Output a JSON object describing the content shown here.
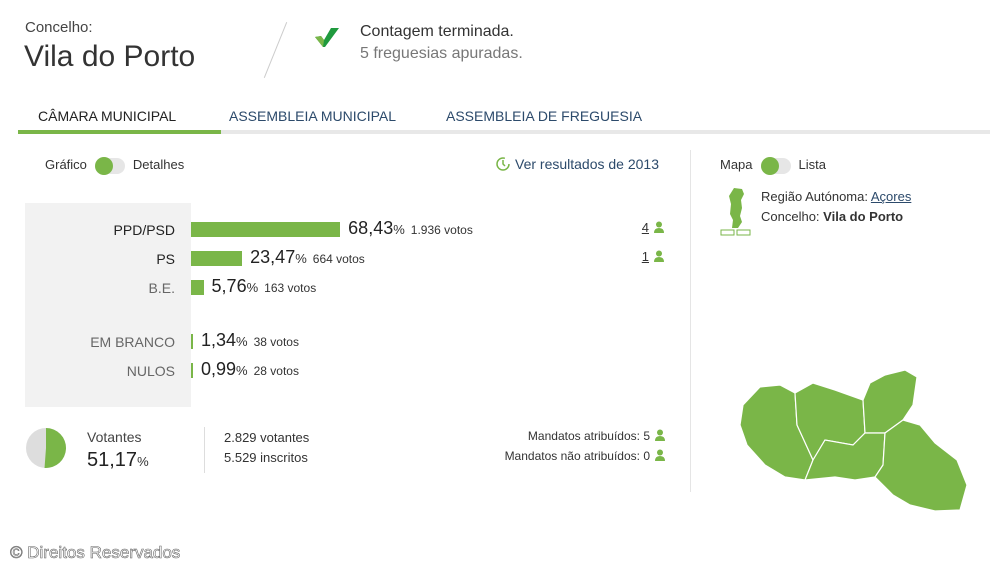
{
  "header": {
    "concelho_label": "Concelho:",
    "concelho_name": "Vila do Porto",
    "status": "Contagem terminada.",
    "freguesias": "5 freguesias apuradas."
  },
  "tabs": [
    {
      "label": "CÂMARA MUNICIPAL",
      "active": true
    },
    {
      "label": "ASSEMBLEIA MUNICIPAL"
    },
    {
      "label": "ASSEMBLEIA DE FREGUESIA"
    }
  ],
  "view_toggle": {
    "left": "Gráfico",
    "right": "Detalhes"
  },
  "history_link": "Ver resultados de 2013",
  "results": [
    {
      "party": "PPD/PSD",
      "percent": 68.43,
      "percent_text": "68,43",
      "votes": "1.936 votos",
      "mandates": "4"
    },
    {
      "party": "PS",
      "percent": 23.47,
      "percent_text": "23,47",
      "votes": "664 votos",
      "mandates": "1"
    },
    {
      "party": "B.E.",
      "percent": 5.76,
      "percent_text": "5,76",
      "votes": "163 votos"
    },
    {
      "party": "EM BRANCO",
      "percent": 1.34,
      "percent_text": "1,34",
      "votes": "38 votos"
    },
    {
      "party": "NULOS",
      "percent": 0.99,
      "percent_text": "0,99",
      "votes": "28 votos"
    }
  ],
  "percent_sign": "%",
  "turnout": {
    "label": "Votantes",
    "percent": 51.17,
    "percent_text": "51,17",
    "votantes": "2.829 votantes",
    "inscritos": "5.529 inscritos",
    "mandatos_atribuidos": "Mandatos atribuídos: 5",
    "mandatos_nao_atribuidos": "Mandatos não atribuídos: 0"
  },
  "map_panel": {
    "toggle_left": "Mapa",
    "toggle_right": "Lista",
    "region_label": "Região Autónoma:",
    "region_link": "Açores",
    "concelho_label": "Concelho:",
    "concelho_value": "Vila do Porto"
  },
  "footer": "© Direitos Reservados",
  "colors": {
    "accent": "#7ab648",
    "link": "#2c4a6b"
  }
}
